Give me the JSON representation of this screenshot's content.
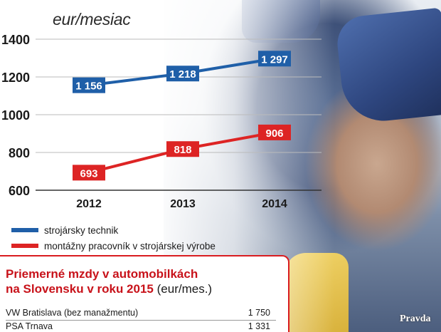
{
  "colors": {
    "technik": "#1f5fa8",
    "pracovnik": "#dd2424",
    "accent_red": "#c8121a"
  },
  "chart_data": {
    "type": "line",
    "title": "",
    "unit_label": "eur/mesiac",
    "x": [
      "2012",
      "2013",
      "2014"
    ],
    "yticks": [
      "600",
      "800",
      "1000",
      "1200",
      "1400"
    ],
    "ylim": [
      600,
      1400
    ],
    "grid": true,
    "series": [
      {
        "name": "strojársky technik",
        "values": [
          1156,
          1218,
          1297
        ],
        "labels": [
          "1 156",
          "1 218",
          "1 297"
        ],
        "color": "#1f5fa8"
      },
      {
        "name": "montážny pracovník v strojárskej výrobe",
        "values": [
          693,
          818,
          906
        ],
        "labels": [
          "693",
          "818",
          "906"
        ],
        "color": "#dd2424"
      }
    ],
    "legend_placement": "bottom-left"
  },
  "info_box": {
    "title_line1": "Priemerné mzdy v automobilkách",
    "title_line2": "na Slovensku v roku 2015",
    "title_unit": "(eur/mes.)",
    "rows": [
      {
        "company": "VW Bratislava (bez manažmentu)",
        "value": "1 750"
      },
      {
        "company": "PSA Trnava",
        "value": "1 331"
      }
    ]
  },
  "logo": {
    "text": "Pravda",
    "icon": "pravda-logo"
  }
}
